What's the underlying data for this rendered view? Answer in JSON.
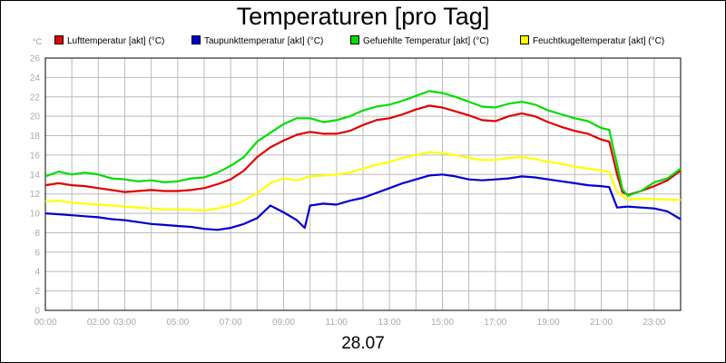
{
  "chart_data": {
    "type": "line",
    "title": "Temperaturen [pro Tag]",
    "xlabel": "28.07",
    "unit": "°C",
    "ylim": [
      0,
      26
    ],
    "xlim": [
      0,
      24
    ],
    "yticks": [
      0,
      2,
      4,
      6,
      8,
      10,
      12,
      14,
      16,
      18,
      20,
      22,
      24,
      26
    ],
    "xticks": [
      {
        "h": 0,
        "label": "00:00"
      },
      {
        "h": 2,
        "label": "02:00"
      },
      {
        "h": 3,
        "label": "03:00"
      },
      {
        "h": 5,
        "label": "05:00"
      },
      {
        "h": 7,
        "label": "07:00"
      },
      {
        "h": 9,
        "label": "09:00"
      },
      {
        "h": 11,
        "label": "11:00"
      },
      {
        "h": 13,
        "label": "13:00"
      },
      {
        "h": 15,
        "label": "15:00"
      },
      {
        "h": 17,
        "label": "17:00"
      },
      {
        "h": 19,
        "label": "19:00"
      },
      {
        "h": 21,
        "label": "21:00"
      },
      {
        "h": 23,
        "label": "23:00"
      }
    ],
    "grid": true,
    "legend_position": "top",
    "series": [
      {
        "name": "Lufttemperatur [akt] (°C)",
        "color": "#e00000",
        "points": [
          [
            0,
            12.9
          ],
          [
            0.5,
            13.1
          ],
          [
            1,
            12.9
          ],
          [
            1.5,
            12.8
          ],
          [
            2,
            12.6
          ],
          [
            2.5,
            12.4
          ],
          [
            3,
            12.2
          ],
          [
            3.5,
            12.3
          ],
          [
            4,
            12.4
          ],
          [
            4.5,
            12.3
          ],
          [
            5,
            12.3
          ],
          [
            5.5,
            12.4
          ],
          [
            6,
            12.6
          ],
          [
            6.5,
            13
          ],
          [
            7,
            13.5
          ],
          [
            7.5,
            14.4
          ],
          [
            8,
            15.8
          ],
          [
            8.5,
            16.8
          ],
          [
            9,
            17.5
          ],
          [
            9.5,
            18.1
          ],
          [
            10,
            18.4
          ],
          [
            10.5,
            18.2
          ],
          [
            11,
            18.2
          ],
          [
            11.5,
            18.5
          ],
          [
            12,
            19.1
          ],
          [
            12.5,
            19.6
          ],
          [
            13,
            19.8
          ],
          [
            13.5,
            20.2
          ],
          [
            14,
            20.7
          ],
          [
            14.5,
            21.1
          ],
          [
            15,
            20.9
          ],
          [
            15.5,
            20.5
          ],
          [
            16,
            20.1
          ],
          [
            16.5,
            19.6
          ],
          [
            17,
            19.5
          ],
          [
            17.5,
            20
          ],
          [
            18,
            20.3
          ],
          [
            18.5,
            20
          ],
          [
            19,
            19.4
          ],
          [
            19.5,
            18.9
          ],
          [
            20,
            18.5
          ],
          [
            20.5,
            18.2
          ],
          [
            21,
            17.6
          ],
          [
            21.3,
            17.4
          ],
          [
            21.6,
            14
          ],
          [
            21.8,
            12.2
          ],
          [
            22,
            11.9
          ],
          [
            22.5,
            12.3
          ],
          [
            23,
            12.8
          ],
          [
            23.5,
            13.4
          ],
          [
            24,
            14.4
          ]
        ]
      },
      {
        "name": "Taupunkttemperatur [akt] (°C)",
        "color": "#0000cc",
        "points": [
          [
            0,
            10
          ],
          [
            0.5,
            9.9
          ],
          [
            1,
            9.8
          ],
          [
            1.5,
            9.7
          ],
          [
            2,
            9.6
          ],
          [
            2.5,
            9.4
          ],
          [
            3,
            9.3
          ],
          [
            3.5,
            9.1
          ],
          [
            4,
            8.9
          ],
          [
            4.5,
            8.8
          ],
          [
            5,
            8.7
          ],
          [
            5.5,
            8.6
          ],
          [
            6,
            8.4
          ],
          [
            6.5,
            8.3
          ],
          [
            7,
            8.5
          ],
          [
            7.5,
            8.9
          ],
          [
            8,
            9.5
          ],
          [
            8.5,
            10.8
          ],
          [
            9,
            10.1
          ],
          [
            9.5,
            9.3
          ],
          [
            9.8,
            8.5
          ],
          [
            10,
            10.8
          ],
          [
            10.5,
            11
          ],
          [
            11,
            10.9
          ],
          [
            11.5,
            11.3
          ],
          [
            12,
            11.6
          ],
          [
            12.5,
            12.1
          ],
          [
            13,
            12.6
          ],
          [
            13.5,
            13.1
          ],
          [
            14,
            13.5
          ],
          [
            14.5,
            13.9
          ],
          [
            15,
            14
          ],
          [
            15.5,
            13.8
          ],
          [
            16,
            13.5
          ],
          [
            16.5,
            13.4
          ],
          [
            17,
            13.5
          ],
          [
            17.5,
            13.6
          ],
          [
            18,
            13.8
          ],
          [
            18.5,
            13.7
          ],
          [
            19,
            13.5
          ],
          [
            19.5,
            13.3
          ],
          [
            20,
            13.1
          ],
          [
            20.5,
            12.9
          ],
          [
            21,
            12.8
          ],
          [
            21.3,
            12.7
          ],
          [
            21.6,
            10.6
          ],
          [
            22,
            10.7
          ],
          [
            22.5,
            10.6
          ],
          [
            23,
            10.5
          ],
          [
            23.5,
            10.2
          ],
          [
            24,
            9.4
          ]
        ]
      },
      {
        "name": "Gefuehlte Temperatur [akt] (°C)",
        "color": "#00dd00",
        "points": [
          [
            0,
            13.8
          ],
          [
            0.5,
            14.3
          ],
          [
            1,
            14
          ],
          [
            1.5,
            14.2
          ],
          [
            2,
            14
          ],
          [
            2.5,
            13.6
          ],
          [
            3,
            13.5
          ],
          [
            3.5,
            13.3
          ],
          [
            4,
            13.4
          ],
          [
            4.5,
            13.2
          ],
          [
            5,
            13.3
          ],
          [
            5.5,
            13.6
          ],
          [
            6,
            13.7
          ],
          [
            6.5,
            14.2
          ],
          [
            7,
            14.9
          ],
          [
            7.5,
            15.8
          ],
          [
            8,
            17.4
          ],
          [
            8.5,
            18.3
          ],
          [
            9,
            19.2
          ],
          [
            9.5,
            19.8
          ],
          [
            10,
            19.8
          ],
          [
            10.5,
            19.4
          ],
          [
            11,
            19.6
          ],
          [
            11.5,
            20
          ],
          [
            12,
            20.6
          ],
          [
            12.5,
            21
          ],
          [
            13,
            21.2
          ],
          [
            13.5,
            21.6
          ],
          [
            14,
            22.1
          ],
          [
            14.5,
            22.6
          ],
          [
            15,
            22.4
          ],
          [
            15.5,
            22
          ],
          [
            16,
            21.5
          ],
          [
            16.5,
            21
          ],
          [
            17,
            20.9
          ],
          [
            17.5,
            21.3
          ],
          [
            18,
            21.5
          ],
          [
            18.5,
            21.2
          ],
          [
            19,
            20.6
          ],
          [
            19.5,
            20.2
          ],
          [
            20,
            19.8
          ],
          [
            20.5,
            19.5
          ],
          [
            21,
            18.8
          ],
          [
            21.3,
            18.6
          ],
          [
            21.6,
            15
          ],
          [
            21.8,
            12.5
          ],
          [
            22,
            11.8
          ],
          [
            22.5,
            12.3
          ],
          [
            23,
            13.2
          ],
          [
            23.5,
            13.6
          ],
          [
            24,
            14.6
          ]
        ]
      },
      {
        "name": "Feuchtkugeltemperatur [akt] (°C)",
        "color": "#ffff00",
        "points": [
          [
            0,
            11.2
          ],
          [
            0.5,
            11.3
          ],
          [
            1,
            11.1
          ],
          [
            1.5,
            11
          ],
          [
            2,
            10.9
          ],
          [
            2.5,
            10.8
          ],
          [
            3,
            10.7
          ],
          [
            3.5,
            10.6
          ],
          [
            4,
            10.5
          ],
          [
            4.5,
            10.4
          ],
          [
            5,
            10.4
          ],
          [
            5.5,
            10.4
          ],
          [
            6,
            10.3
          ],
          [
            6.5,
            10.5
          ],
          [
            7,
            10.8
          ],
          [
            7.5,
            11.3
          ],
          [
            8,
            12.1
          ],
          [
            8.5,
            13.1
          ],
          [
            9,
            13.6
          ],
          [
            9.5,
            13.4
          ],
          [
            10,
            13.8
          ],
          [
            10.5,
            13.9
          ],
          [
            11,
            14
          ],
          [
            11.5,
            14.2
          ],
          [
            12,
            14.6
          ],
          [
            12.5,
            15
          ],
          [
            13,
            15.3
          ],
          [
            13.5,
            15.7
          ],
          [
            14,
            16
          ],
          [
            14.5,
            16.3
          ],
          [
            15,
            16.2
          ],
          [
            15.5,
            16
          ],
          [
            16,
            15.7
          ],
          [
            16.5,
            15.5
          ],
          [
            17,
            15.5
          ],
          [
            17.5,
            15.7
          ],
          [
            18,
            15.8
          ],
          [
            18.5,
            15.6
          ],
          [
            19,
            15.3
          ],
          [
            19.5,
            15.1
          ],
          [
            20,
            14.8
          ],
          [
            20.5,
            14.6
          ],
          [
            21,
            14.4
          ],
          [
            21.3,
            14.3
          ],
          [
            21.6,
            12.2
          ],
          [
            22,
            11.4
          ],
          [
            22.5,
            11.5
          ],
          [
            23,
            11.5
          ],
          [
            23.5,
            11.4
          ],
          [
            24,
            11.4
          ]
        ]
      }
    ]
  }
}
